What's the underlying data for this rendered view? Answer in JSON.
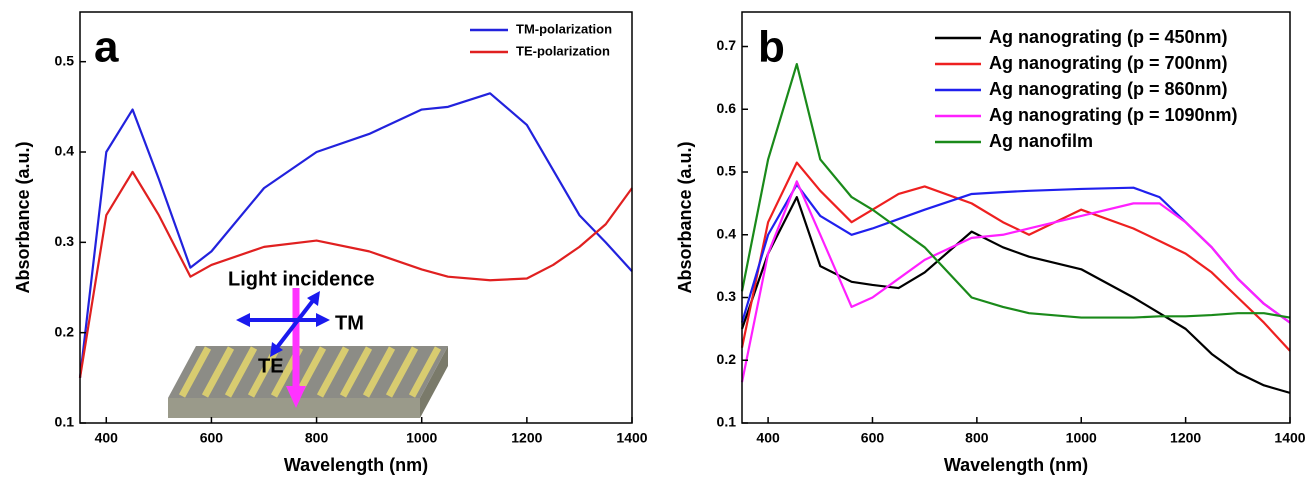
{
  "chart_data": [
    {
      "type": "line",
      "panel_label": "a",
      "x_label": "Wavelength (nm)",
      "y_label": "Absorbance (a.u.)",
      "x": [
        350,
        400,
        450,
        500,
        560,
        600,
        700,
        800,
        900,
        1000,
        1050,
        1130,
        1200,
        1250,
        1300,
        1350,
        1400
      ],
      "series": [
        {
          "name": "TM-polarization",
          "color": "#2222dd",
          "values": [
            0.15,
            0.4,
            0.447,
            0.37,
            0.272,
            0.29,
            0.36,
            0.4,
            0.42,
            0.447,
            0.45,
            0.465,
            0.43,
            0.38,
            0.33,
            0.3,
            0.268
          ]
        },
        {
          "name": "TE-polarization",
          "color": "#e02020",
          "values": [
            0.15,
            0.33,
            0.378,
            0.33,
            0.262,
            0.275,
            0.295,
            0.302,
            0.29,
            0.27,
            0.262,
            0.258,
            0.26,
            0.275,
            0.295,
            0.32,
            0.36
          ]
        }
      ],
      "xlim": [
        350,
        1400
      ],
      "xticks": [
        400,
        600,
        800,
        1000,
        1200,
        1400
      ],
      "ylim": [
        0.1,
        0.555
      ],
      "yticks": [
        0.1,
        0.2,
        0.3,
        0.4,
        0.5
      ],
      "legend": "upper right",
      "annotations": [
        "Light incidence",
        "TM",
        "TE"
      ]
    },
    {
      "type": "line",
      "panel_label": "b",
      "x_label": "Wavelength (nm)",
      "y_label": "Absorbance (a.u.)",
      "x": [
        350,
        400,
        455,
        500,
        560,
        600,
        650,
        700,
        790,
        850,
        900,
        1000,
        1100,
        1150,
        1200,
        1250,
        1300,
        1350,
        1400
      ],
      "series": [
        {
          "name": "Ag nanograting (p = 450nm)",
          "color": "#000000",
          "values": [
            0.25,
            0.37,
            0.46,
            0.35,
            0.325,
            0.32,
            0.315,
            0.34,
            0.405,
            0.38,
            0.365,
            0.345,
            0.3,
            0.275,
            0.25,
            0.21,
            0.18,
            0.16,
            0.148
          ]
        },
        {
          "name": "Ag nanograting (p = 700nm)",
          "color": "#ee2020",
          "values": [
            0.22,
            0.42,
            0.515,
            0.47,
            0.42,
            0.44,
            0.465,
            0.477,
            0.45,
            0.42,
            0.4,
            0.44,
            0.41,
            0.39,
            0.37,
            0.34,
            0.3,
            0.26,
            0.215
          ]
        },
        {
          "name": "Ag nanograting (p = 860nm)",
          "color": "#2020ee",
          "values": [
            0.26,
            0.4,
            0.48,
            0.43,
            0.4,
            0.41,
            0.425,
            0.44,
            0.465,
            0.468,
            0.47,
            0.473,
            0.475,
            0.46,
            0.42,
            0.38,
            0.33,
            0.29,
            0.26
          ]
        },
        {
          "name": "Ag nanograting (p = 1090nm)",
          "color": "#ff20ff",
          "values": [
            0.165,
            0.37,
            0.485,
            0.4,
            0.285,
            0.3,
            0.33,
            0.36,
            0.395,
            0.4,
            0.41,
            0.43,
            0.45,
            0.45,
            0.42,
            0.38,
            0.33,
            0.29,
            0.26
          ]
        },
        {
          "name": "Ag nanofilm",
          "color": "#1a8a1a",
          "values": [
            0.31,
            0.52,
            0.672,
            0.52,
            0.46,
            0.44,
            0.41,
            0.38,
            0.3,
            0.285,
            0.275,
            0.268,
            0.268,
            0.27,
            0.27,
            0.272,
            0.275,
            0.275,
            0.268
          ]
        }
      ],
      "xlim": [
        350,
        1400
      ],
      "xticks": [
        400,
        600,
        800,
        1000,
        1200,
        1400
      ],
      "ylim": [
        0.1,
        0.755
      ],
      "yticks": [
        0.1,
        0.2,
        0.3,
        0.4,
        0.5,
        0.6,
        0.7
      ],
      "legend": "upper right"
    }
  ]
}
